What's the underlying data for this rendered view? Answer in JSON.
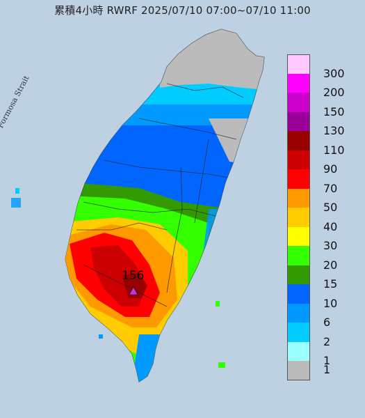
{
  "title": "累積4小時 RWRF 2025/07/10 07:00~07/10 11:00",
  "strait_label": "Formosa Strait",
  "max_marker": {
    "value": "156",
    "color": "#cc33dd"
  },
  "legend": [
    {
      "label": "300",
      "color": "#ffc8ff"
    },
    {
      "label": "200",
      "color": "#ff00ff"
    },
    {
      "label": "150",
      "color": "#cc00cc"
    },
    {
      "label": "130",
      "color": "#990099"
    },
    {
      "label": "110",
      "color": "#990000"
    },
    {
      "label": "90",
      "color": "#cc0000"
    },
    {
      "label": "70",
      "color": "#ff0000"
    },
    {
      "label": "50",
      "color": "#ff9900"
    },
    {
      "label": "40",
      "color": "#ffcc00"
    },
    {
      "label": "30",
      "color": "#ffff00"
    },
    {
      "label": "20",
      "color": "#33ff00"
    },
    {
      "label": "15",
      "color": "#339900"
    },
    {
      "label": "10",
      "color": "#0066ff"
    },
    {
      "label": "6",
      "color": "#0099ff"
    },
    {
      "label": "2",
      "color": "#00ccff"
    },
    {
      "label": "1",
      "color": "#99ffff"
    },
    {
      "label": "",
      "color": "#bbbbbb"
    }
  ]
}
